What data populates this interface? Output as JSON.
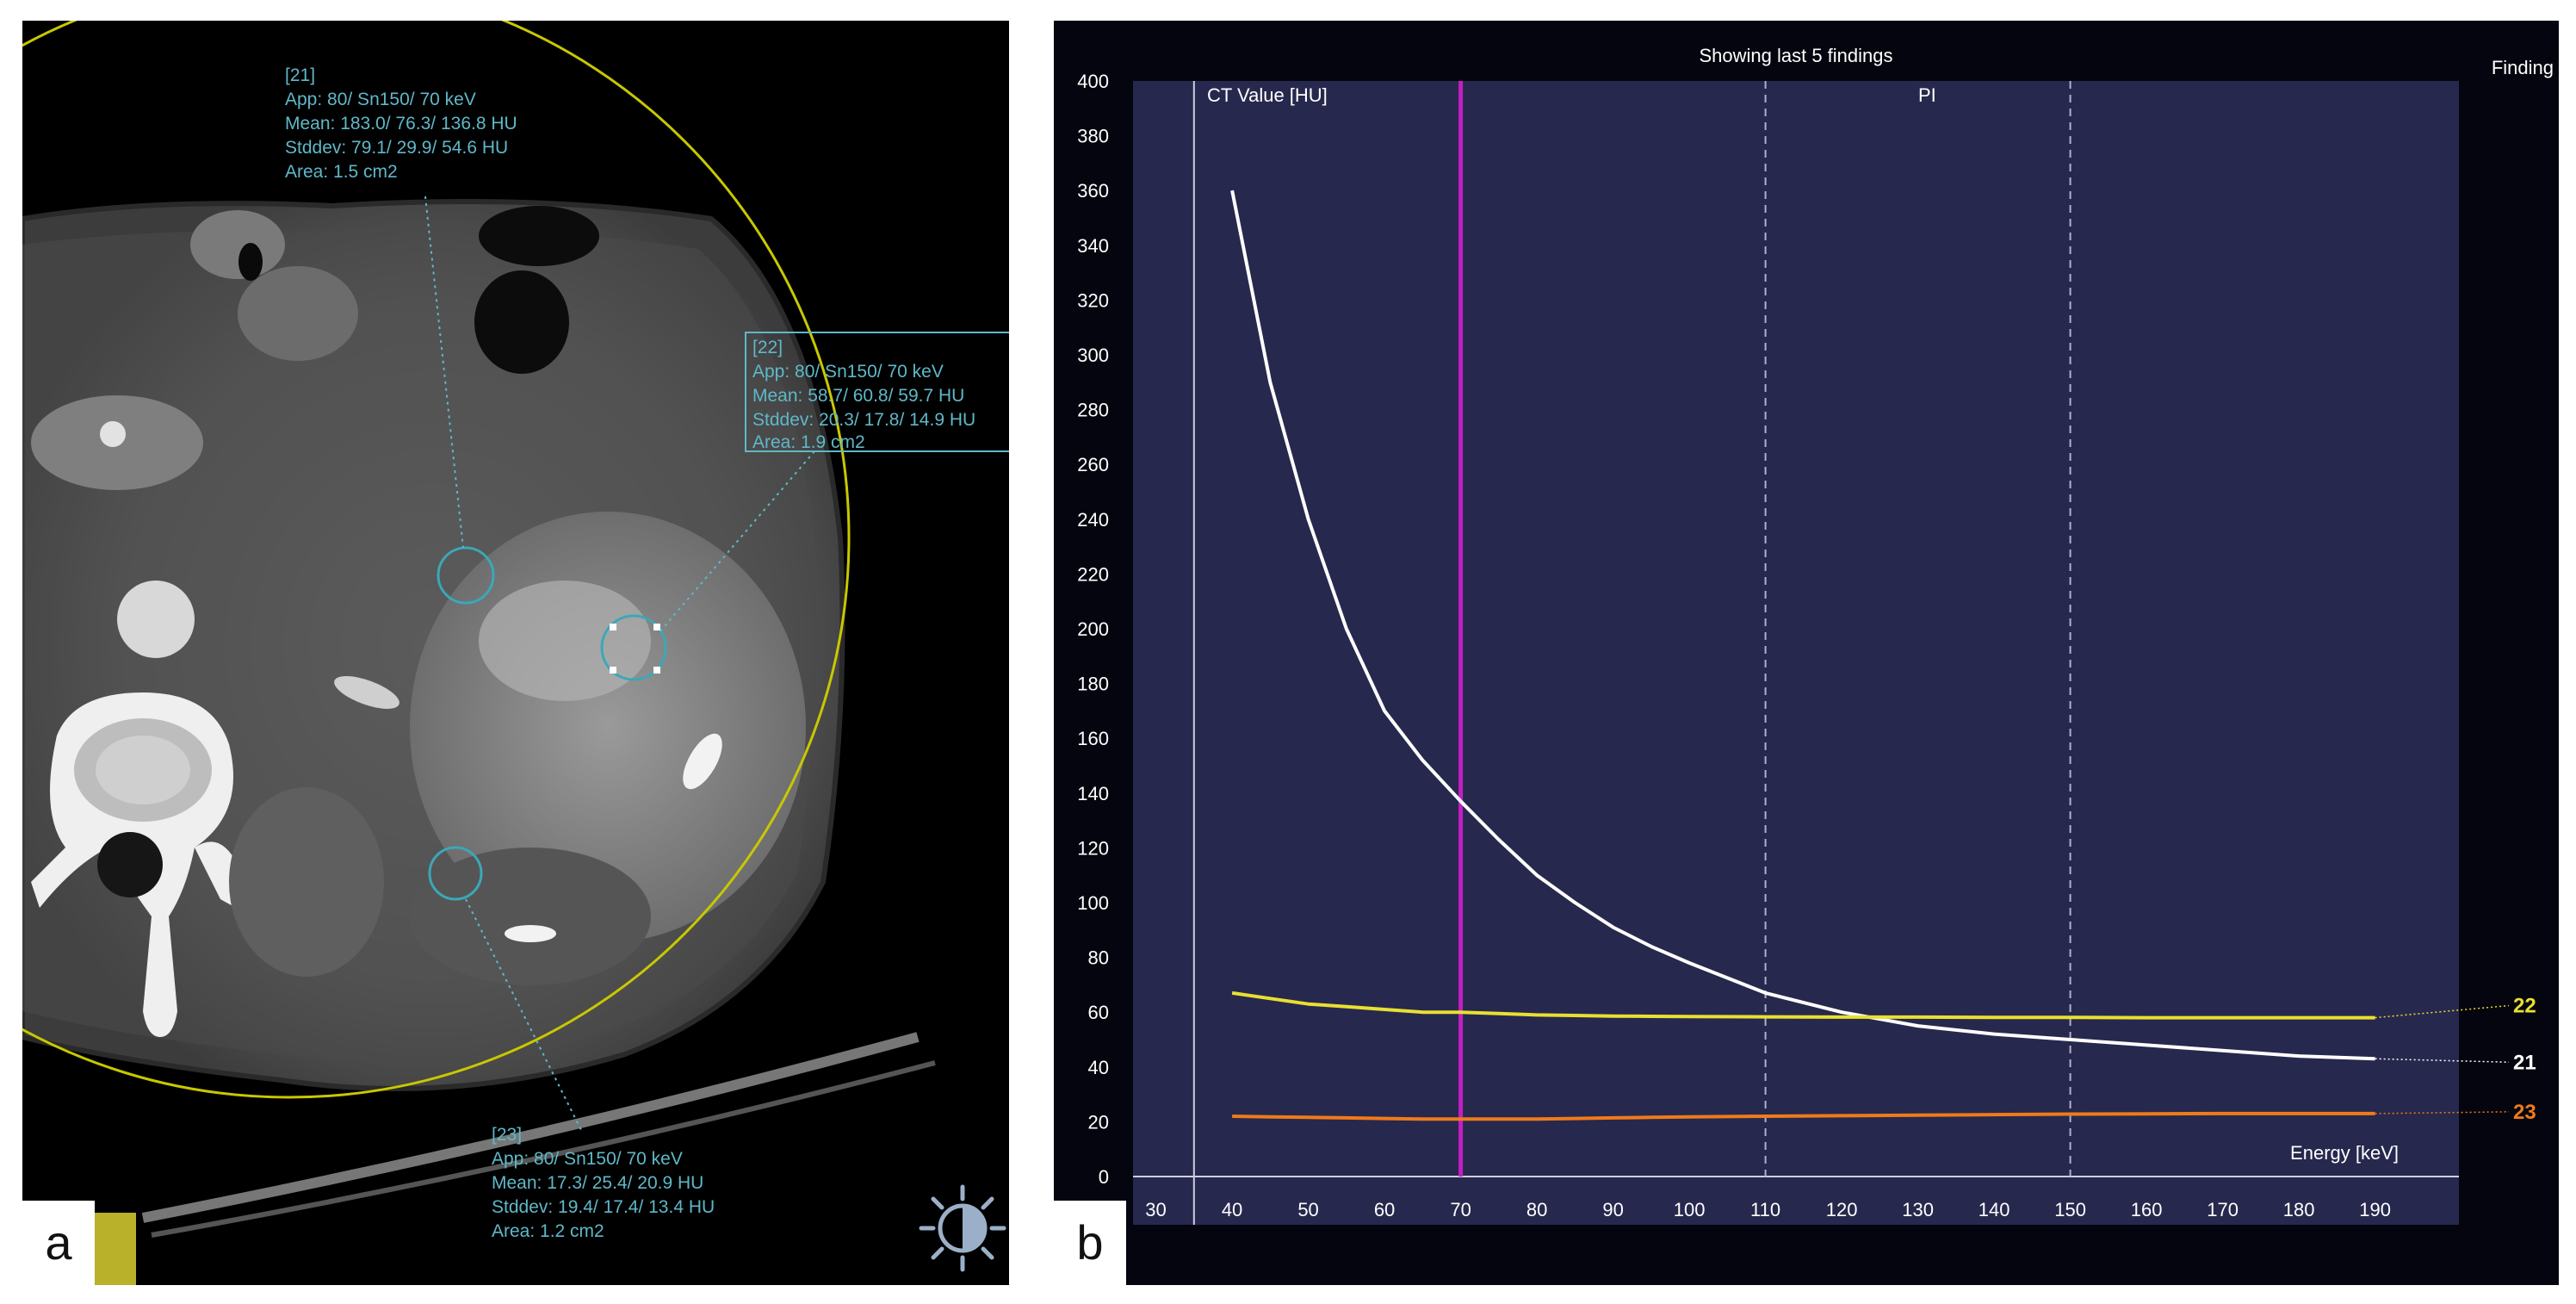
{
  "panel_a": {
    "label": "a",
    "annotations": [
      {
        "id": "[21]",
        "lines": [
          "App: 80/ Sn150/ 70 keV",
          "Mean: 183.0/ 76.3/ 136.8 HU",
          "Stddev: 79.1/ 29.9/ 54.6 HU",
          "Area: 1.5 cm2"
        ]
      },
      {
        "id": "[22]",
        "lines": [
          "App: 80/ Sn150/ 70 keV",
          "Mean: 58.7/ 60.8/ 59.7 HU",
          "Stddev: 20.3/ 17.8/ 14.9 HU",
          "Area: 1.9 cm2"
        ]
      },
      {
        "id": "[23]",
        "lines": [
          "App: 80/ Sn150/ 70 keV",
          "Mean: 17.3/ 25.4/ 20.9 HU",
          "Stddev: 19.4/ 17.4/ 13.4 HU",
          "Area: 1.2 cm2"
        ]
      }
    ],
    "icon": "brightness-contrast-icon",
    "colors": {
      "annotation": "#5fb8c8",
      "roi": "#3aa8b8",
      "field_of_view": "#c8c800"
    }
  },
  "panel_b": {
    "label": "b",
    "header": "Showing last 5 findings",
    "column_label": "CT Value [HU]",
    "pi_label": "PI",
    "finding_label": "Finding",
    "energy_label": "Energy [keV]",
    "colors": {
      "plot_bg": "#27284e",
      "marker": "#c21fc2",
      "finding_21": "#ffffff",
      "finding_22": "#e8e030",
      "finding_23": "#f07a1a"
    }
  },
  "chart_data": {
    "type": "line",
    "title": "Showing last 5 findings",
    "xlabel": "Energy [keV]",
    "ylabel": "CT Value [HU]",
    "xlim": [
      27,
      201
    ],
    "ylim": [
      0,
      400
    ],
    "x_ticks": [
      30,
      40,
      50,
      60,
      70,
      80,
      90,
      100,
      110,
      120,
      130,
      140,
      150,
      160,
      170,
      180,
      190
    ],
    "y_ticks": [
      0,
      20,
      40,
      60,
      80,
      100,
      120,
      140,
      160,
      180,
      200,
      220,
      240,
      260,
      280,
      300,
      320,
      340,
      360,
      380,
      400
    ],
    "vertical_marker_kev": 70,
    "dashed_lines_kev": [
      110,
      150
    ],
    "x": [
      40,
      45,
      50,
      55,
      60,
      65,
      70,
      75,
      80,
      85,
      90,
      95,
      100,
      110,
      120,
      130,
      140,
      150,
      160,
      170,
      180,
      190
    ],
    "series": [
      {
        "name": "21",
        "values": [
          360,
          290,
          240,
          200,
          170,
          152,
          137,
          123,
          110,
          100,
          91,
          84,
          78,
          67,
          60,
          55,
          52,
          50,
          48,
          46,
          44,
          43
        ]
      },
      {
        "name": "22",
        "values": [
          67,
          65,
          63,
          62,
          61,
          60,
          60,
          59.5,
          59,
          58.8,
          58.6,
          58.5,
          58.4,
          58.3,
          58.2,
          58.2,
          58.1,
          58.1,
          58,
          58,
          58,
          58
        ]
      },
      {
        "name": "23",
        "values": [
          22,
          21.8,
          21.6,
          21.4,
          21.2,
          21,
          21,
          21,
          21,
          21.2,
          21.4,
          21.6,
          21.8,
          22,
          22.2,
          22.4,
          22.6,
          22.8,
          22.9,
          23,
          23,
          23
        ]
      }
    ]
  }
}
